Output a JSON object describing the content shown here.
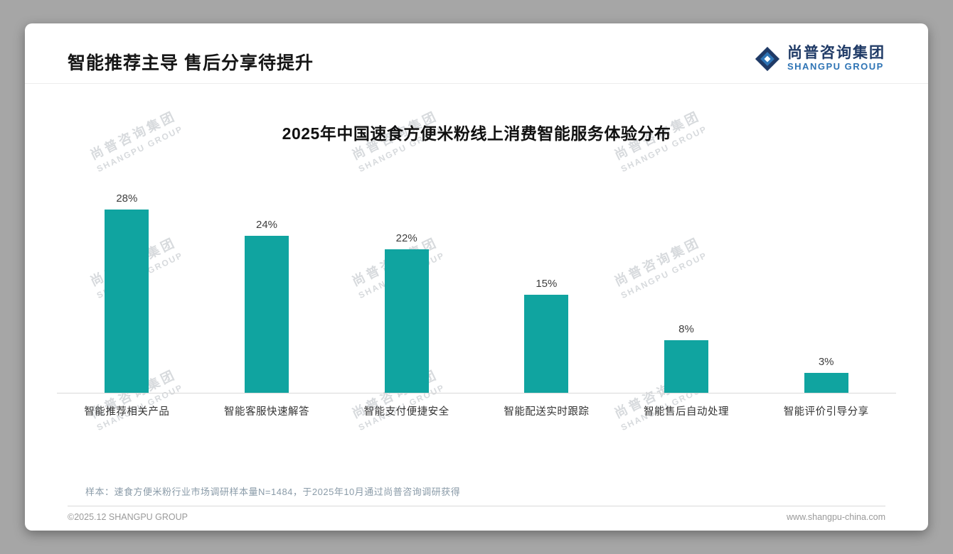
{
  "slide": {
    "title": "智能推荐主导 售后分享待提升",
    "sample_note": "样本：速食方便米粉行业市场调研样本量N=1484，于2025年10月通过尚普咨询调研获得",
    "footer_left": "©2025.12 SHANGPU GROUP",
    "footer_right": "www.shangpu-china.com"
  },
  "brand": {
    "logo_cn": "尚普咨询集团",
    "logo_en": "SHANGPU GROUP"
  },
  "watermark": {
    "line1": "尚普咨询集团",
    "line2": "SHANGPU GROUP",
    "rows": 3,
    "columns": 3
  },
  "colors": {
    "bar": "#10a4a0",
    "brand_navy": "#1f3a66",
    "brand_blue": "#2e74b5",
    "note_text": "#8a9ba8"
  },
  "chart_data": {
    "type": "bar",
    "title": "2025年中国速食方便米粉线上消费智能服务体验分布",
    "categories": [
      "智能推荐相关产品",
      "智能客服快速解答",
      "智能支付便捷安全",
      "智能配送实时跟踪",
      "智能售后自动处理",
      "智能评价引导分享"
    ],
    "values": [
      28,
      24,
      22,
      15,
      8,
      3
    ],
    "unit": "%",
    "ylim": [
      0,
      30
    ],
    "grid": false,
    "legend": false,
    "bar_color": "#10a4a0",
    "xlabel": "",
    "ylabel": ""
  }
}
